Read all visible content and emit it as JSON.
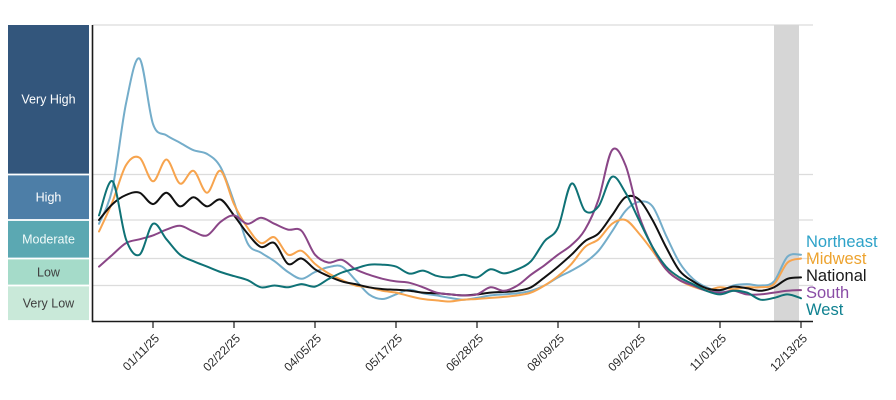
{
  "chart": {
    "type": "line",
    "description": "Regional wastewater viral activity levels over time; y-axis is categorical activity bands, x-axis is weekly dates.",
    "value_unit": "activity level band scale: 0-1 Very Low, 1-2 Low, 2-3 Moderate, 3-4 High, above 4 Very High (chart top = 8)",
    "y_bands": [
      {
        "label": "Very High",
        "color": "#33567c",
        "text_color": "#ffffff",
        "range": [
          4,
          8
        ]
      },
      {
        "label": "High",
        "color": "#4d7ea7",
        "text_color": "#ffffff",
        "range": [
          3,
          4
        ]
      },
      {
        "label": "Moderate",
        "color": "#5ba8b2",
        "text_color": "#f2fbfa",
        "range": [
          2,
          3
        ]
      },
      {
        "label": "Low",
        "color": "#a5dbc9",
        "text_color": "#3f3f3f",
        "range": [
          1,
          2
        ]
      },
      {
        "label": "Very Low",
        "color": "#c9e9d9",
        "text_color": "#3f3f3f",
        "range": [
          0,
          1
        ]
      }
    ],
    "x_tick_labels": [
      "01/11/25",
      "02/22/25",
      "04/05/25",
      "05/17/25",
      "06/28/25",
      "08/09/25",
      "09/20/25",
      "11/01/25",
      "12/13/25"
    ],
    "x_weekly_dates": [
      "12/14/24",
      "12/21/24",
      "12/28/24",
      "01/04/25",
      "01/11/25",
      "01/18/25",
      "01/25/25",
      "02/01/25",
      "02/08/25",
      "02/15/25",
      "02/22/25",
      "03/01/25",
      "03/08/25",
      "03/15/25",
      "03/22/25",
      "03/29/25",
      "04/05/25",
      "04/12/25",
      "04/19/25",
      "04/26/25",
      "05/03/25",
      "05/10/25",
      "05/17/25",
      "05/24/25",
      "05/31/25",
      "06/07/25",
      "06/14/25",
      "06/21/25",
      "06/28/25",
      "07/05/25",
      "07/12/25",
      "07/19/25",
      "07/26/25",
      "08/02/25",
      "08/09/25",
      "08/16/25",
      "08/23/25",
      "08/30/25",
      "09/06/25",
      "09/13/25",
      "09/20/25",
      "09/27/25",
      "10/04/25",
      "10/11/25",
      "10/18/25",
      "10/25/25",
      "11/01/25",
      "11/08/25",
      "11/15/25",
      "11/22/25",
      "11/29/25",
      "12/06/25",
      "12/13/25"
    ],
    "series": [
      {
        "name": "Northeast",
        "color": "#74adca",
        "label_color": "#2da2c8",
        "values": [
          2.9,
          3.7,
          5.9,
          7.1,
          5.35,
          5.05,
          4.85,
          4.65,
          4.55,
          4.2,
          3.4,
          2.4,
          2.15,
          1.9,
          1.5,
          1.25,
          1.5,
          1.68,
          1.7,
          1.2,
          0.75,
          0.62,
          0.75,
          0.88,
          0.78,
          0.72,
          0.65,
          0.6,
          0.65,
          0.72,
          0.75,
          0.78,
          0.85,
          1.0,
          1.3,
          1.55,
          1.85,
          2.2,
          2.7,
          3.2,
          3.4,
          3.3,
          2.6,
          1.85,
          1.25,
          0.95,
          0.85,
          1.0,
          1.05,
          1.0,
          1.15,
          2.05,
          2.1
        ]
      },
      {
        "name": "Midwest",
        "color": "#f7a44e",
        "label_color": "#eda32f",
        "values": [
          2.7,
          3.4,
          4.25,
          4.45,
          3.85,
          4.4,
          3.8,
          4.1,
          3.6,
          4.1,
          3.35,
          2.8,
          2.4,
          2.55,
          2.1,
          2.2,
          1.8,
          1.45,
          1.2,
          1.0,
          0.95,
          0.85,
          0.8,
          0.7,
          0.62,
          0.58,
          0.55,
          0.6,
          0.62,
          0.65,
          0.68,
          0.72,
          0.8,
          1.0,
          1.35,
          1.8,
          2.3,
          2.5,
          2.9,
          3.0,
          2.65,
          2.2,
          1.6,
          1.2,
          0.97,
          0.87,
          0.95,
          0.9,
          0.95,
          0.95,
          1.05,
          1.85,
          2.0
        ]
      },
      {
        "name": "National",
        "color": "#111111",
        "label_color": "#1a1a1a",
        "values": [
          3.0,
          3.35,
          3.55,
          3.6,
          3.35,
          3.6,
          3.3,
          3.5,
          3.3,
          3.45,
          3.1,
          2.65,
          2.3,
          2.4,
          1.8,
          2.0,
          1.6,
          1.35,
          1.15,
          1.05,
          0.95,
          0.9,
          0.88,
          0.85,
          0.8,
          0.78,
          0.75,
          0.72,
          0.75,
          0.8,
          0.82,
          0.85,
          0.95,
          1.3,
          1.7,
          2.1,
          2.45,
          2.65,
          3.1,
          3.5,
          3.45,
          3.0,
          2.3,
          1.55,
          1.15,
          0.92,
          0.87,
          0.97,
          0.92,
          0.85,
          0.95,
          1.25,
          1.3
        ]
      },
      {
        "name": "South",
        "color": "#8a4687",
        "label_color": "#8a4da6",
        "values": [
          1.7,
          2.1,
          2.4,
          2.5,
          2.6,
          2.75,
          2.85,
          2.7,
          2.6,
          2.95,
          3.1,
          2.9,
          3.05,
          2.9,
          2.75,
          2.72,
          2.1,
          1.85,
          1.95,
          1.6,
          1.4,
          1.25,
          1.15,
          1.1,
          0.95,
          0.8,
          0.75,
          0.72,
          0.75,
          0.95,
          0.85,
          1.0,
          1.4,
          1.75,
          2.1,
          2.35,
          2.75,
          3.45,
          4.65,
          4.25,
          3.1,
          2.3,
          1.6,
          1.2,
          1.0,
          0.85,
          0.8,
          0.85,
          0.75,
          0.75,
          0.8,
          0.85,
          0.87
        ]
      },
      {
        "name": "West",
        "color": "#0f7276",
        "label_color": "#108291",
        "values": [
          3.1,
          3.85,
          2.5,
          2.1,
          2.9,
          2.5,
          2.1,
          1.9,
          1.7,
          1.5,
          1.35,
          1.2,
          0.95,
          1.0,
          0.95,
          1.05,
          0.97,
          1.24,
          1.48,
          1.63,
          1.77,
          1.77,
          1.7,
          1.44,
          1.55,
          1.36,
          1.3,
          1.4,
          1.3,
          1.6,
          1.45,
          1.6,
          1.9,
          2.45,
          2.8,
          3.8,
          3.2,
          3.3,
          3.95,
          3.6,
          3.0,
          2.3,
          1.7,
          1.3,
          1.05,
          0.85,
          0.75,
          0.85,
          0.8,
          0.6,
          0.65,
          0.75,
          0.64
        ]
      }
    ],
    "provisional_band": {
      "start_date": "11/29/25",
      "end_date": "12/13/25",
      "color": "#d6d6d6"
    },
    "grid_color": "#dcdcdc",
    "axis_color": "#1a1a1a",
    "tick_label_color": "#2b2b2b"
  }
}
